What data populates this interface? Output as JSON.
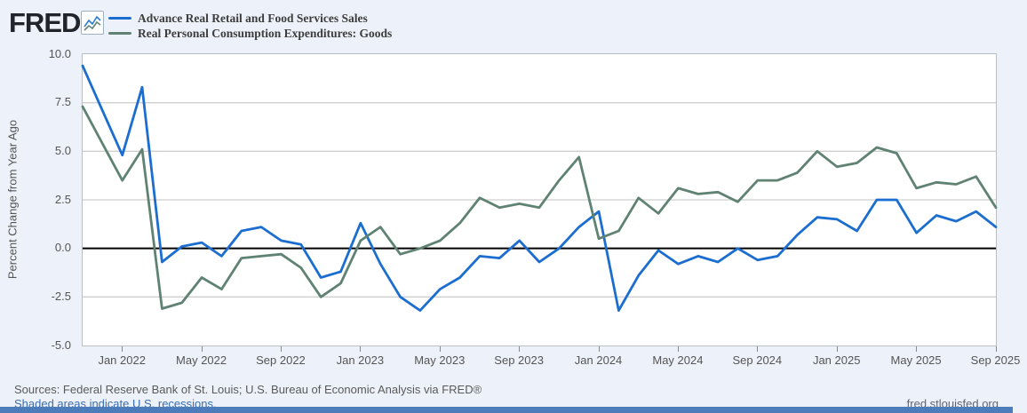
{
  "header": {
    "logo_text": "FRED",
    "registered_mark": "®"
  },
  "y_axis_title": "Percent Change from Year Ago",
  "footer": {
    "sources": "Sources: Federal Reserve Bank of St. Louis; U.S. Bureau of Economic Analysis via FRED®",
    "recessions_note": "Shaded areas indicate U.S. recessions.",
    "site": "fred.stlouisfed.org"
  },
  "chart_data": {
    "type": "line",
    "title": "",
    "xlabel": "",
    "ylabel": "Percent Change from Year Ago",
    "ylim": [
      -5,
      10
    ],
    "y_ticks": [
      "10.0",
      "7.5",
      "5.0",
      "2.5",
      "0.0",
      "-2.5",
      "-5.0"
    ],
    "grid": true,
    "zero_line": true,
    "legend_position": "top-left",
    "x_range": [
      "2021-11",
      "2025-09"
    ],
    "x_tick_labels": [
      "Jan 2022",
      "May 2022",
      "Sep 2022",
      "Jan 2023",
      "May 2023",
      "Sep 2023",
      "Jan 2024",
      "May 2024",
      "Sep 2024",
      "Jan 2025",
      "May 2025",
      "Sep 2025"
    ],
    "x_tick_indices": [
      2,
      6,
      10,
      14,
      18,
      22,
      26,
      30,
      34,
      38,
      42,
      46
    ],
    "months": [
      "2021-11",
      "2021-12",
      "2022-01",
      "2022-02",
      "2022-03",
      "2022-04",
      "2022-05",
      "2022-06",
      "2022-07",
      "2022-08",
      "2022-09",
      "2022-10",
      "2022-11",
      "2022-12",
      "2023-01",
      "2023-02",
      "2023-03",
      "2023-04",
      "2023-05",
      "2023-06",
      "2023-07",
      "2023-08",
      "2023-09",
      "2023-10",
      "2023-11",
      "2023-12",
      "2024-01",
      "2024-02",
      "2024-03",
      "2024-04",
      "2024-05",
      "2024-06",
      "2024-07",
      "2024-08",
      "2024-09",
      "2024-10",
      "2024-11",
      "2024-12",
      "2025-01",
      "2025-02",
      "2025-03",
      "2025-04",
      "2025-05",
      "2025-06",
      "2025-07",
      "2025-08",
      "2025-09"
    ],
    "series": [
      {
        "name": "Advance Real Retail and Food Services Sales",
        "color": "#1b6ecf",
        "values": [
          9.4,
          7.1,
          4.8,
          8.3,
          -0.7,
          0.1,
          0.3,
          -0.4,
          0.9,
          1.1,
          0.4,
          0.2,
          -1.5,
          -1.2,
          1.3,
          -0.8,
          -2.5,
          -3.2,
          -2.1,
          -1.5,
          -0.4,
          -0.5,
          0.4,
          -0.7,
          0.0,
          1.1,
          1.9,
          -3.2,
          -1.4,
          -0.1,
          -0.8,
          -0.4,
          -0.7,
          0.0,
          -0.6,
          -0.4,
          0.7,
          1.6,
          1.5,
          0.9,
          2.5,
          2.5,
          0.8,
          1.7,
          1.4,
          1.9,
          1.1
        ]
      },
      {
        "name": "Real Personal Consumption Expenditures: Goods",
        "color": "#5f8273",
        "values": [
          7.3,
          5.4,
          3.5,
          5.1,
          -3.1,
          -2.8,
          -1.5,
          -2.1,
          -0.5,
          -0.4,
          -0.3,
          -1.0,
          -2.5,
          -1.8,
          0.4,
          1.1,
          -0.3,
          0.0,
          0.4,
          1.3,
          2.6,
          2.1,
          2.3,
          2.1,
          3.5,
          4.7,
          0.5,
          0.9,
          2.6,
          1.8,
          3.1,
          2.8,
          2.9,
          2.4,
          3.5,
          3.5,
          3.9,
          5.0,
          4.2,
          4.4,
          5.2,
          4.9,
          3.1,
          3.4,
          3.3,
          3.7,
          2.1
        ]
      }
    ]
  }
}
